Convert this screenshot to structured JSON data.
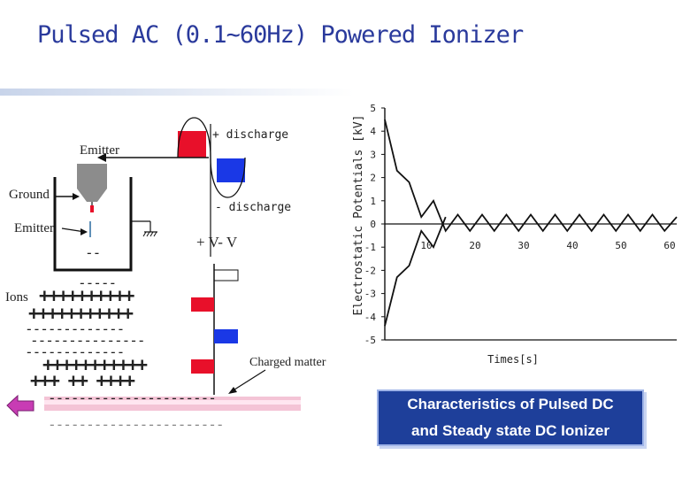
{
  "title": "Pulsed AC (0.1~60Hz) Powered Ionizer",
  "diagram": {
    "emitter_top": "Emitter",
    "ground": "Ground",
    "emitter_left": "Emitter",
    "plus_discharge": "+ discharge",
    "minus_discharge": "- discharge",
    "voltage": "+ V- V",
    "ions": "Ions",
    "charged_matter": "Charged matter",
    "row_minus_1": "--",
    "row_minus_2": "-----",
    "row_plus_1": "++++++++++",
    "row_plus_2": "+++++++++++",
    "row_minus_3": "-------------",
    "row_minus_4": "---------------",
    "row_minus_5": "-------------",
    "row_plus_3": "+++++++++++",
    "row_plus_4": "+++  ++  ++++",
    "surface_minus_1": "----------------------",
    "surface_minus_2": "-----------------------"
  },
  "chart_data": {
    "type": "line",
    "ylabel": "Electrostatic Potentials [kV]",
    "xlabel": "Times[s]",
    "xlim": [
      0,
      60
    ],
    "ylim": [
      -5,
      5
    ],
    "x_ticks": [
      "10",
      "20",
      "30",
      "40",
      "50",
      "60"
    ],
    "y_ticks": [
      "5",
      "4",
      "3",
      "2",
      "1",
      "0",
      "-1",
      "-2",
      "-3",
      "-4",
      "-5"
    ],
    "series": [
      {
        "x": [
          0,
          2.5,
          5,
          7.5,
          10,
          12.5,
          15,
          17.5,
          20,
          22.5,
          25,
          27.5,
          30,
          32.5,
          35,
          37.5,
          40,
          42.5,
          45,
          47.5,
          50,
          52.5,
          55,
          57.5,
          60
        ],
        "y": [
          4.5,
          2.3,
          1.8,
          0.3,
          1.0,
          -0.3,
          0.4,
          -0.3,
          0.4,
          -0.3,
          0.4,
          -0.3,
          0.4,
          -0.3,
          0.4,
          -0.3,
          0.4,
          -0.3,
          0.4,
          -0.3,
          0.4,
          -0.3,
          0.4,
          -0.3,
          0.3
        ]
      },
      {
        "x": [
          0,
          2.5,
          5,
          7.5,
          10,
          12.5
        ],
        "y": [
          -4.4,
          -2.3,
          -1.8,
          -0.3,
          -1.0,
          0.3
        ]
      }
    ]
  },
  "caption": {
    "line1": "Characteristics of Pulsed DC",
    "line2": "and Steady state DC Ionizer"
  },
  "colors": {
    "title": "#2a3a9c",
    "red": "#e8102a",
    "blue": "#1a38e6",
    "caption_bg": "#1e3f9a"
  }
}
